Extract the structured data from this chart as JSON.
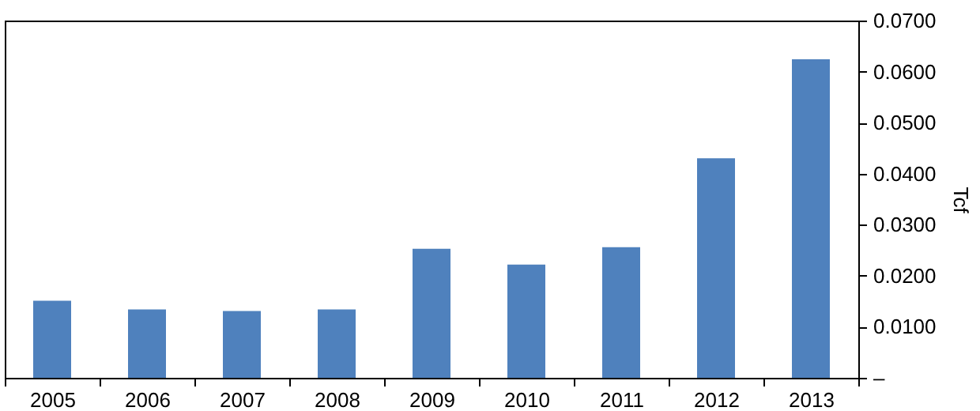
{
  "chart_data": {
    "type": "bar",
    "ylabel": "Tcf",
    "categories": [
      "2005",
      "2006",
      "2007",
      "2008",
      "2009",
      "2010",
      "2011",
      "2012",
      "2013"
    ],
    "values": [
      0.0151,
      0.0134,
      0.0131,
      0.0134,
      0.0253,
      0.0222,
      0.0256,
      0.043,
      0.0624
    ],
    "color": "#4f81bd",
    "ylim": [
      0,
      0.07
    ],
    "yticks": [
      {
        "value": 0,
        "label": "–"
      },
      {
        "value": 0.01,
        "label": "0.0100"
      },
      {
        "value": 0.02,
        "label": "0.0200"
      },
      {
        "value": 0.03,
        "label": "0.0300"
      },
      {
        "value": 0.04,
        "label": "0.0400"
      },
      {
        "value": 0.05,
        "label": "0.0500"
      },
      {
        "value": 0.06,
        "label": "0.0600"
      },
      {
        "value": 0.07,
        "label": "0.0700"
      }
    ],
    "grid": false
  }
}
